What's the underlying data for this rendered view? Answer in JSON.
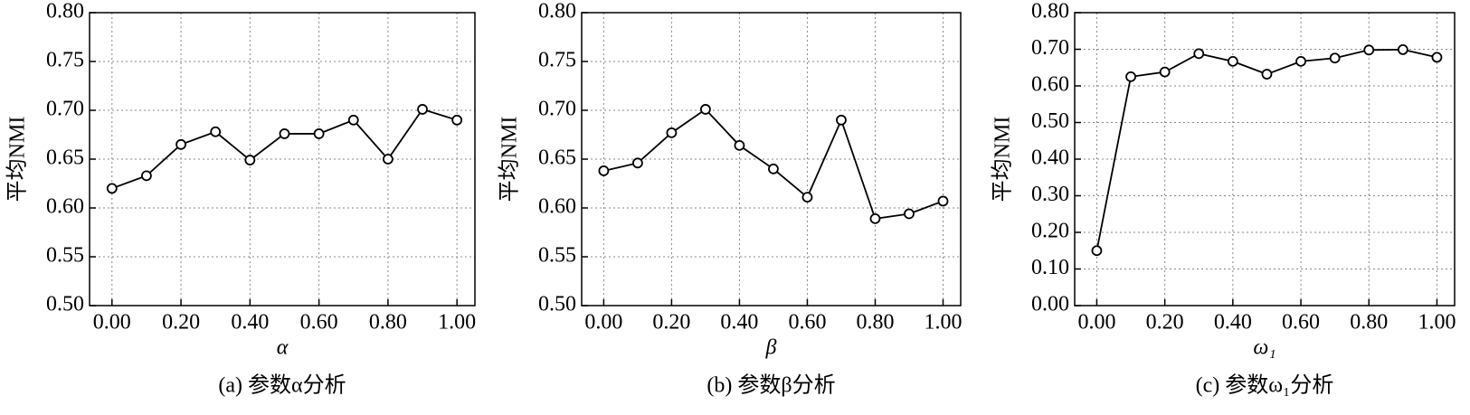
{
  "chart_data": [
    {
      "type": "line",
      "caption": "(a) 参数α分析",
      "xlabel": "α",
      "ylabel": "平均NMI",
      "x": [
        0,
        0.1,
        0.2,
        0.3,
        0.4,
        0.5,
        0.6,
        0.7,
        0.8,
        0.9,
        1.0
      ],
      "values": [
        0.62,
        0.633,
        0.665,
        0.678,
        0.649,
        0.676,
        0.676,
        0.69,
        0.65,
        0.701,
        0.69
      ],
      "color": "#000000",
      "grid": true,
      "xlim": [
        -0.065,
        1.052
      ],
      "ylim": [
        0.5,
        0.8
      ],
      "xticks": [
        {
          "value": 0,
          "label": "0.00"
        },
        {
          "value": 0.2,
          "label": "0.20"
        },
        {
          "value": 0.4,
          "label": "0.40"
        },
        {
          "value": 0.6,
          "label": "0.60"
        },
        {
          "value": 0.8,
          "label": "0.80"
        },
        {
          "value": 1,
          "label": "1.00"
        }
      ],
      "yticks": [
        {
          "value": 0.5,
          "label": "0.50"
        },
        {
          "value": 0.55,
          "label": "0.55"
        },
        {
          "value": 0.6,
          "label": "0.60"
        },
        {
          "value": 0.65,
          "label": "0.65"
        },
        {
          "value": 0.7,
          "label": "0.70"
        },
        {
          "value": 0.75,
          "label": "0.75"
        },
        {
          "value": 0.8,
          "label": "0.80"
        }
      ]
    },
    {
      "type": "line",
      "caption": "(b) 参数β分析",
      "xlabel": "β",
      "ylabel": "平均NMI",
      "x": [
        0,
        0.1,
        0.2,
        0.3,
        0.4,
        0.5,
        0.6,
        0.7,
        0.8,
        0.9,
        1.0
      ],
      "values": [
        0.638,
        0.646,
        0.677,
        0.701,
        0.664,
        0.64,
        0.611,
        0.69,
        0.589,
        0.594,
        0.607
      ],
      "color": "#000000",
      "grid": true,
      "xlim": [
        -0.065,
        1.052
      ],
      "ylim": [
        0.5,
        0.8
      ],
      "xticks": [
        {
          "value": 0,
          "label": "0.00"
        },
        {
          "value": 0.2,
          "label": "0.20"
        },
        {
          "value": 0.4,
          "label": "0.40"
        },
        {
          "value": 0.6,
          "label": "0.60"
        },
        {
          "value": 0.8,
          "label": "0.80"
        },
        {
          "value": 1,
          "label": "1.00"
        }
      ],
      "yticks": [
        {
          "value": 0.5,
          "label": "0.50"
        },
        {
          "value": 0.55,
          "label": "0.55"
        },
        {
          "value": 0.6,
          "label": "0.60"
        },
        {
          "value": 0.65,
          "label": "0.65"
        },
        {
          "value": 0.7,
          "label": "0.70"
        },
        {
          "value": 0.75,
          "label": "0.75"
        },
        {
          "value": 0.8,
          "label": "0.80"
        }
      ]
    },
    {
      "type": "line",
      "caption": "(c) 参数ω₁分析",
      "xlabel": "ω₁",
      "ylabel": "平均NMI",
      "x": [
        0,
        0.1,
        0.2,
        0.3,
        0.4,
        0.5,
        0.6,
        0.7,
        0.8,
        0.9,
        1.0
      ],
      "values": [
        0.15,
        0.625,
        0.638,
        0.688,
        0.667,
        0.632,
        0.667,
        0.676,
        0.698,
        0.699,
        0.678
      ],
      "color": "#000000",
      "grid": true,
      "xlim": [
        -0.065,
        1.052
      ],
      "ylim": [
        0,
        0.8
      ],
      "xticks": [
        {
          "value": 0,
          "label": "0.00"
        },
        {
          "value": 0.2,
          "label": "0.20"
        },
        {
          "value": 0.4,
          "label": "0.40"
        },
        {
          "value": 0.6,
          "label": "0.60"
        },
        {
          "value": 0.8,
          "label": "0.80"
        },
        {
          "value": 1,
          "label": "1.00"
        }
      ],
      "yticks": [
        {
          "value": 0,
          "label": "0.00"
        },
        {
          "value": 0.1,
          "label": "0.10"
        },
        {
          "value": 0.2,
          "label": "0.20"
        },
        {
          "value": 0.3,
          "label": "0.30"
        },
        {
          "value": 0.4,
          "label": "0.40"
        },
        {
          "value": 0.5,
          "label": "0.50"
        },
        {
          "value": 0.6,
          "label": "0.60"
        },
        {
          "value": 0.7,
          "label": "0.70"
        },
        {
          "value": 0.8,
          "label": "0.80"
        }
      ]
    }
  ]
}
